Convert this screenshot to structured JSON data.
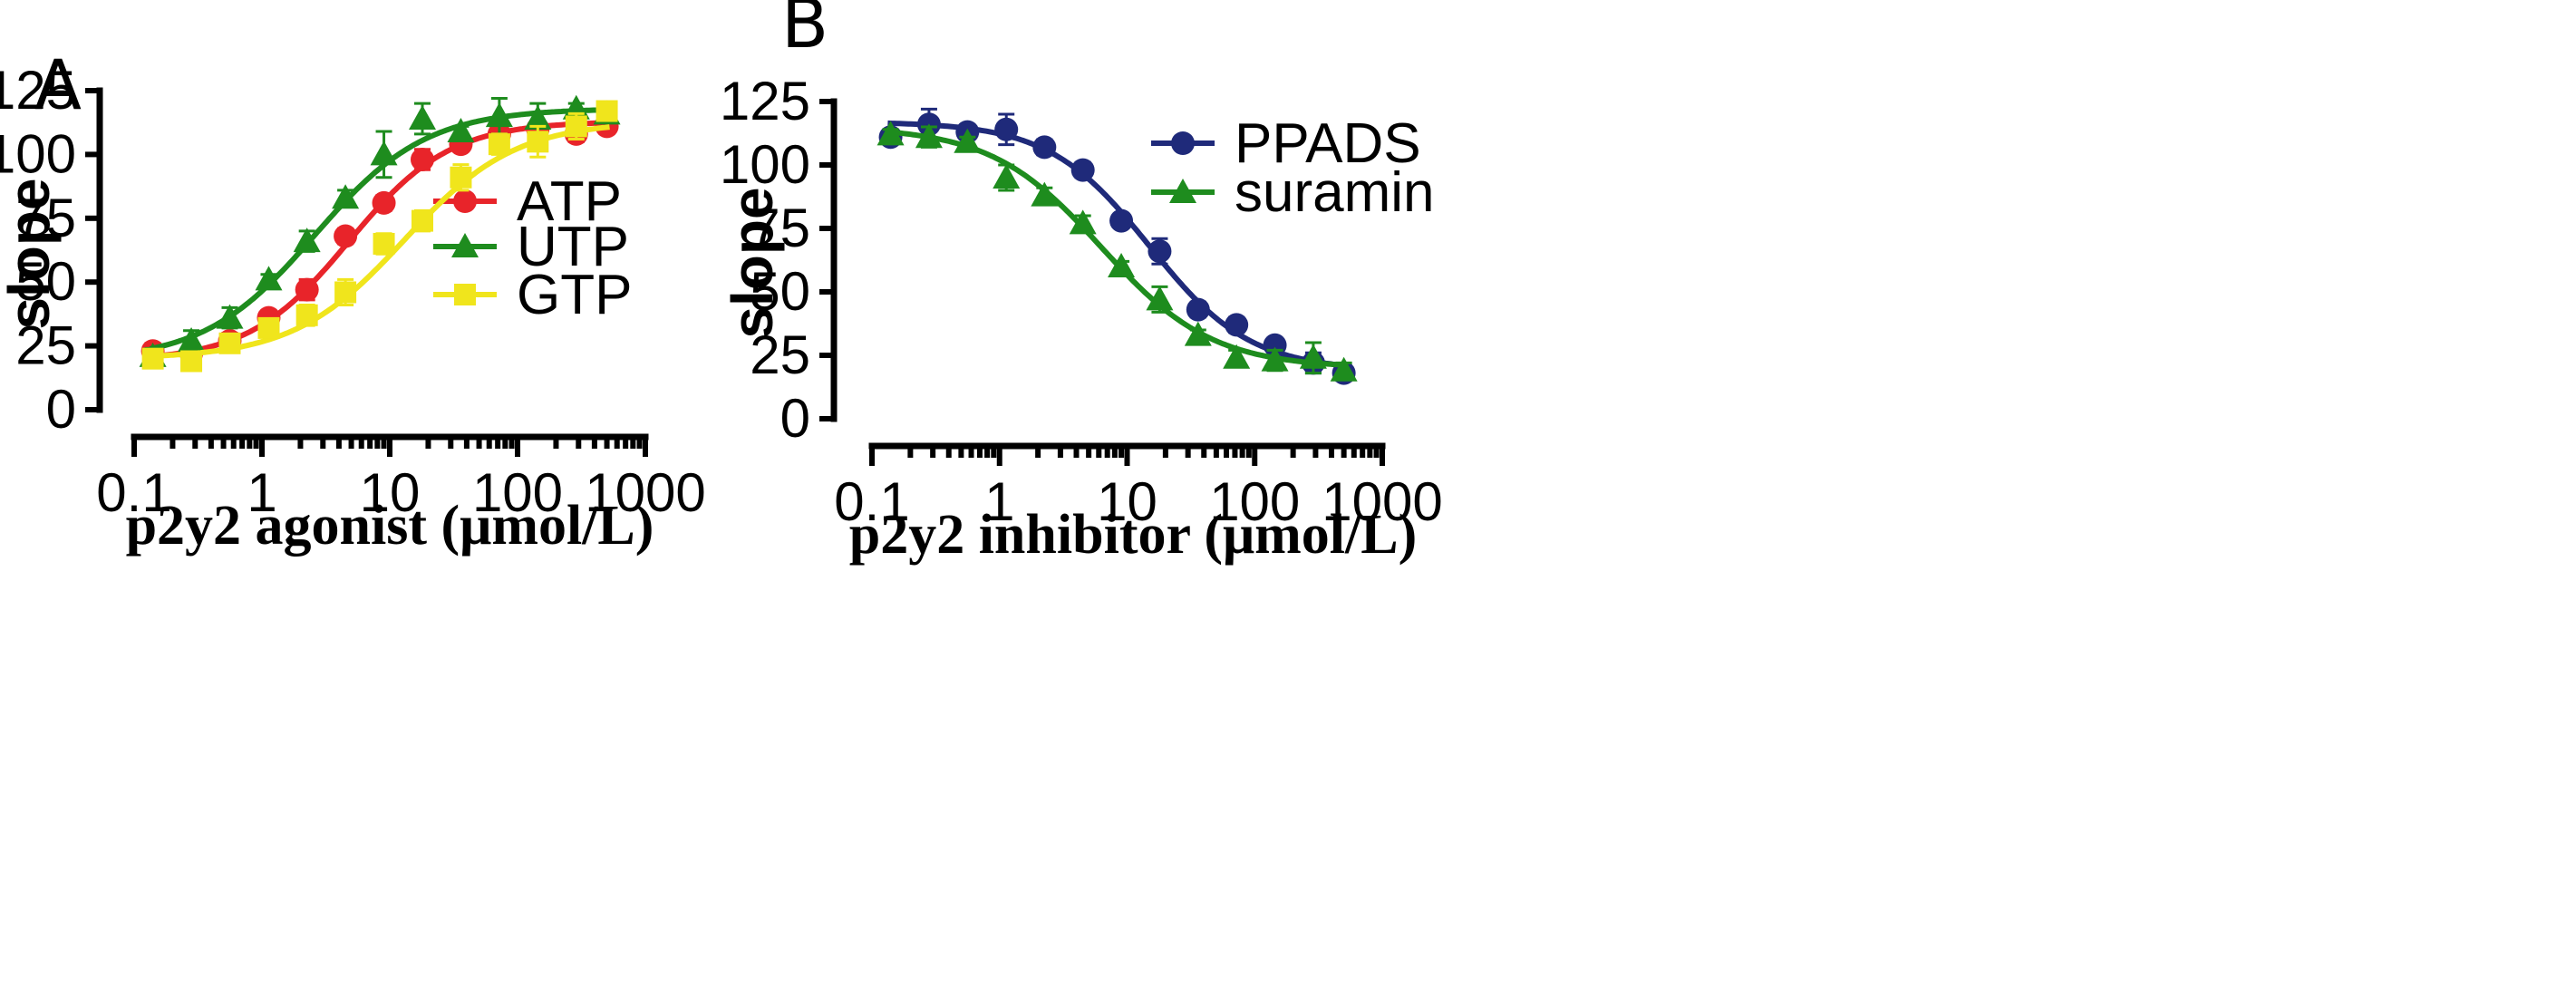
{
  "chart_data": [
    {
      "type": "scatter",
      "panel_label": "A",
      "xlabel": "p2y2 agonist (μmol/L)",
      "ylabel": "slope",
      "xscale": "log",
      "xlim": [
        0.1,
        1000
      ],
      "ylim": [
        0,
        125
      ],
      "xticks": [
        "0.1",
        "1",
        "10",
        "100",
        "1000"
      ],
      "yticks": [
        "0",
        "25",
        "50",
        "75",
        "100",
        "125"
      ],
      "legend_position": "center-right",
      "series": [
        {
          "name": "ATP",
          "color": "#e8242a",
          "marker": "circle",
          "x": [
            0.14,
            0.28,
            0.56,
            1.13,
            2.25,
            4.5,
            9,
            18,
            36,
            72,
            144,
            288,
            500
          ],
          "y": [
            23,
            22,
            27,
            36,
            47,
            68,
            81,
            98,
            104,
            108,
            110,
            108,
            111
          ],
          "err": [
            3,
            2,
            3,
            2,
            4,
            3,
            3,
            4,
            2,
            3,
            3,
            3,
            2
          ],
          "fit": {
            "bottom": 19,
            "top": 113,
            "ec50": 4.8,
            "hill": 1.1
          }
        },
        {
          "name": "UTP",
          "color": "#1e8c1e",
          "marker": "triangle",
          "x": [
            0.14,
            0.28,
            0.56,
            1.13,
            2.25,
            4.5,
            9,
            18,
            36,
            72,
            144,
            288,
            500
          ],
          "y": [
            21,
            27,
            36,
            51,
            66,
            83,
            100,
            114,
            109,
            115,
            114,
            118,
            116
          ],
          "err": [
            3,
            4,
            4,
            2,
            4,
            3,
            9,
            6,
            2,
            7,
            6,
            2,
            3
          ],
          "fit": {
            "bottom": 19,
            "top": 118,
            "ec50": 2.6,
            "hill": 1.0
          }
        },
        {
          "name": "GTP",
          "color": "#f0e51c",
          "marker": "square",
          "x": [
            0.14,
            0.28,
            0.56,
            1.13,
            2.25,
            4.5,
            9,
            18,
            36,
            72,
            144,
            288,
            500
          ],
          "y": [
            20,
            19,
            26,
            32,
            37,
            46,
            65,
            74,
            91,
            104,
            105,
            111,
            117
          ],
          "err": [
            2,
            3,
            3,
            2,
            4,
            5,
            4,
            4,
            5,
            4,
            6,
            5,
            3
          ],
          "fit": {
            "bottom": 20,
            "top": 113,
            "ec50": 13,
            "hill": 1.0
          }
        }
      ]
    },
    {
      "type": "scatter",
      "panel_label": "B",
      "xlabel": "p2y2 inhibitor (μmol/L)",
      "ylabel": "slope",
      "xscale": "log",
      "xlim": [
        0.1,
        1000
      ],
      "ylim": [
        0,
        125
      ],
      "xticks": [
        "0.1",
        "1",
        "10",
        "100",
        "1000"
      ],
      "yticks": [
        "0",
        "25",
        "50",
        "75",
        "100",
        "125"
      ],
      "legend_position": "top-right",
      "series": [
        {
          "name": "PPADS",
          "color": "#1f2a7a",
          "marker": "circle",
          "x": [
            0.14,
            0.28,
            0.56,
            1.13,
            2.25,
            4.5,
            9,
            18,
            36,
            72,
            144,
            288,
            500
          ],
          "y": [
            111,
            116,
            113,
            114,
            107,
            98,
            78,
            66,
            43,
            37,
            29,
            22,
            18
          ],
          "err": [
            2,
            6,
            2,
            6,
            3,
            3,
            2,
            5,
            3,
            3,
            2,
            4,
            3
          ],
          "fit": {
            "bottom": 19,
            "top": 117,
            "ec50": 15,
            "hill": 1.1
          }
        },
        {
          "name": "suramin",
          "color": "#1e8c1e",
          "marker": "triangle",
          "x": [
            0.14,
            0.28,
            0.56,
            1.13,
            2.25,
            4.5,
            9,
            18,
            36,
            72,
            144,
            288,
            500
          ],
          "y": [
            112,
            111,
            109,
            95,
            88,
            77,
            60,
            47,
            33,
            24,
            23,
            24,
            19
          ],
          "err": [
            2,
            4,
            2,
            5,
            3,
            3,
            2,
            5,
            2,
            3,
            4,
            6,
            3
          ],
          "fit": {
            "bottom": 20,
            "top": 115,
            "ec50": 6.3,
            "hill": 1.0
          }
        }
      ]
    }
  ]
}
